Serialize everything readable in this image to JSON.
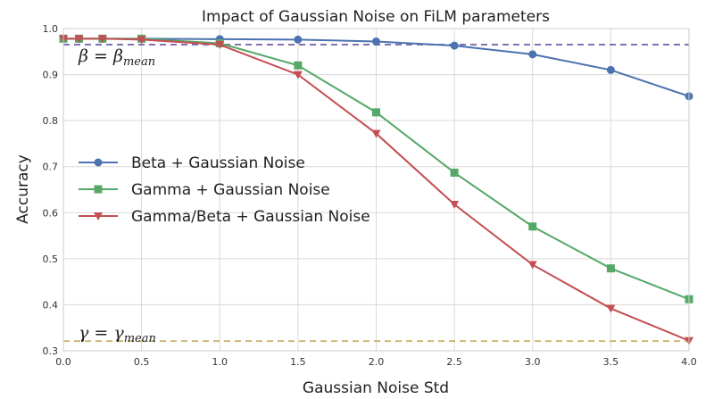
{
  "chart_data": {
    "type": "line",
    "title": "Impact of Gaussian Noise on FiLM parameters",
    "xlabel": "Gaussian Noise Std",
    "ylabel": "Accuracy",
    "xlim": [
      0.0,
      4.0
    ],
    "ylim": [
      0.3,
      1.0
    ],
    "xticks": [
      0.0,
      0.5,
      1.0,
      1.5,
      2.0,
      2.5,
      3.0,
      3.5,
      4.0
    ],
    "yticks": [
      0.3,
      0.4,
      0.5,
      0.6,
      0.7,
      0.8,
      0.9,
      1.0
    ],
    "grid": true,
    "legend_position": "center-left",
    "series": [
      {
        "name": "Beta + Gaussian Noise",
        "color": "#4c72b0",
        "marker": "circle",
        "x": [
          0.0,
          0.1,
          0.25,
          0.5,
          1.0,
          1.5,
          2.0,
          2.5,
          3.0,
          3.5,
          4.0
        ],
        "y": [
          0.978,
          0.978,
          0.978,
          0.978,
          0.977,
          0.976,
          0.972,
          0.963,
          0.944,
          0.91,
          0.853
        ]
      },
      {
        "name": "Gamma + Gaussian Noise",
        "color": "#55a868",
        "marker": "square",
        "x": [
          0.0,
          0.1,
          0.25,
          0.5,
          1.0,
          1.5,
          2.0,
          2.5,
          3.0,
          3.5,
          4.0
        ],
        "y": [
          0.978,
          0.978,
          0.978,
          0.978,
          0.968,
          0.92,
          0.818,
          0.687,
          0.57,
          0.479,
          0.412
        ]
      },
      {
        "name": "Gamma/Beta + Gaussian Noise",
        "color": "#c44e52",
        "marker": "triangle-down",
        "x": [
          0.0,
          0.1,
          0.25,
          0.5,
          1.0,
          1.5,
          2.0,
          2.5,
          3.0,
          3.5,
          4.0
        ],
        "y": [
          0.978,
          0.978,
          0.978,
          0.976,
          0.965,
          0.9,
          0.772,
          0.618,
          0.487,
          0.392,
          0.322
        ]
      }
    ],
    "reference_lines": [
      {
        "label_main": "β = β",
        "label_sub": "mean",
        "y": 0.965,
        "color": "#8172b2",
        "style": "dashed"
      },
      {
        "label_main": "γ = γ",
        "label_sub": "mean",
        "y": 0.321,
        "color": "#ccb974",
        "style": "dashed"
      }
    ]
  }
}
